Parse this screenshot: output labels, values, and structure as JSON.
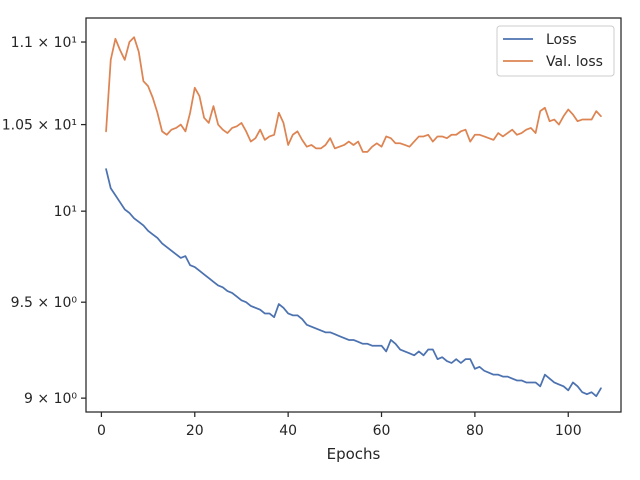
{
  "chart_data": {
    "type": "line",
    "xlabel": "Epochs",
    "ylabel": "",
    "yscale": "log",
    "xlim": [
      -3.3,
      111.3
    ],
    "ylim": [
      8.93,
      11.15
    ],
    "grid": false,
    "legend_position": "top-right",
    "xticks": [
      0,
      20,
      40,
      60,
      80,
      100
    ],
    "xtick_labels": [
      "0",
      "20",
      "40",
      "60",
      "80",
      "100"
    ],
    "yticks": [
      9.0,
      9.5,
      10.0,
      10.5,
      11.0
    ],
    "ytick_labels": [
      "9 × 10⁰",
      "9.5 × 10⁰",
      "10¹",
      "1.05 × 10¹",
      "1.1 × 10¹"
    ],
    "series": [
      {
        "name": "Loss",
        "color": "#4c72b0",
        "x": [
          1,
          2,
          3,
          4,
          5,
          6,
          7,
          8,
          9,
          10,
          11,
          12,
          13,
          14,
          15,
          16,
          17,
          18,
          19,
          20,
          21,
          22,
          23,
          24,
          25,
          26,
          27,
          28,
          29,
          30,
          31,
          32,
          33,
          34,
          35,
          36,
          37,
          38,
          39,
          40,
          41,
          42,
          43,
          44,
          45,
          46,
          47,
          48,
          49,
          50,
          51,
          52,
          53,
          54,
          55,
          56,
          57,
          58,
          59,
          60,
          61,
          62,
          63,
          64,
          65,
          66,
          67,
          68,
          69,
          70,
          71,
          72,
          73,
          74,
          75,
          76,
          77,
          78,
          79,
          80,
          81,
          82,
          83,
          84,
          85,
          86,
          87,
          88,
          89,
          90,
          91,
          92,
          93,
          94,
          95,
          96,
          97,
          98,
          99,
          100,
          101,
          102,
          103,
          104,
          105,
          106,
          107
        ],
        "values": [
          10.24,
          10.13,
          10.09,
          10.05,
          10.01,
          9.99,
          9.96,
          9.94,
          9.92,
          9.89,
          9.87,
          9.85,
          9.82,
          9.8,
          9.78,
          9.76,
          9.74,
          9.75,
          9.7,
          9.69,
          9.67,
          9.65,
          9.63,
          9.61,
          9.59,
          9.58,
          9.56,
          9.55,
          9.53,
          9.51,
          9.5,
          9.48,
          9.47,
          9.46,
          9.44,
          9.44,
          9.42,
          9.49,
          9.47,
          9.44,
          9.43,
          9.43,
          9.41,
          9.38,
          9.37,
          9.36,
          9.35,
          9.34,
          9.34,
          9.33,
          9.32,
          9.31,
          9.3,
          9.3,
          9.29,
          9.28,
          9.28,
          9.27,
          9.27,
          9.27,
          9.24,
          9.3,
          9.28,
          9.25,
          9.24,
          9.23,
          9.22,
          9.24,
          9.22,
          9.25,
          9.25,
          9.2,
          9.21,
          9.19,
          9.18,
          9.2,
          9.18,
          9.2,
          9.2,
          9.15,
          9.16,
          9.14,
          9.13,
          9.12,
          9.12,
          9.11,
          9.11,
          9.1,
          9.09,
          9.09,
          9.08,
          9.08,
          9.08,
          9.06,
          9.12,
          9.1,
          9.08,
          9.07,
          9.06,
          9.04,
          9.08,
          9.06,
          9.03,
          9.02,
          9.03,
          9.01,
          9.05
        ]
      },
      {
        "name": "Val. loss",
        "color": "#dd8452",
        "x": [
          1,
          2,
          3,
          4,
          5,
          6,
          7,
          8,
          9,
          10,
          11,
          12,
          13,
          14,
          15,
          16,
          17,
          18,
          19,
          20,
          21,
          22,
          23,
          24,
          25,
          26,
          27,
          28,
          29,
          30,
          31,
          32,
          33,
          34,
          35,
          36,
          37,
          38,
          39,
          40,
          41,
          42,
          43,
          44,
          45,
          46,
          47,
          48,
          49,
          50,
          51,
          52,
          53,
          54,
          55,
          56,
          57,
          58,
          59,
          60,
          61,
          62,
          63,
          64,
          65,
          66,
          67,
          68,
          69,
          70,
          71,
          72,
          73,
          74,
          75,
          76,
          77,
          78,
          79,
          80,
          81,
          82,
          83,
          84,
          85,
          86,
          87,
          88,
          89,
          90,
          91,
          92,
          93,
          94,
          95,
          96,
          97,
          98,
          99,
          100,
          101,
          102,
          103,
          104,
          105,
          106,
          107
        ],
        "values": [
          10.46,
          10.89,
          11.02,
          10.95,
          10.89,
          11.0,
          11.03,
          10.94,
          10.76,
          10.73,
          10.66,
          10.57,
          10.46,
          10.44,
          10.47,
          10.48,
          10.5,
          10.46,
          10.57,
          10.72,
          10.67,
          10.54,
          10.51,
          10.61,
          10.5,
          10.47,
          10.45,
          10.48,
          10.49,
          10.51,
          10.46,
          10.4,
          10.42,
          10.47,
          10.41,
          10.43,
          10.44,
          10.57,
          10.51,
          10.38,
          10.44,
          10.46,
          10.41,
          10.37,
          10.38,
          10.36,
          10.36,
          10.38,
          10.42,
          10.36,
          10.37,
          10.38,
          10.4,
          10.38,
          10.4,
          10.34,
          10.34,
          10.37,
          10.39,
          10.37,
          10.43,
          10.42,
          10.39,
          10.39,
          10.38,
          10.37,
          10.4,
          10.43,
          10.43,
          10.44,
          10.4,
          10.43,
          10.43,
          10.42,
          10.44,
          10.44,
          10.46,
          10.47,
          10.4,
          10.44,
          10.44,
          10.43,
          10.42,
          10.41,
          10.45,
          10.43,
          10.45,
          10.47,
          10.44,
          10.45,
          10.47,
          10.48,
          10.45,
          10.58,
          10.6,
          10.52,
          10.53,
          10.5,
          10.55,
          10.59,
          10.56,
          10.52,
          10.53,
          10.53,
          10.53,
          10.58,
          10.55
        ]
      }
    ]
  }
}
